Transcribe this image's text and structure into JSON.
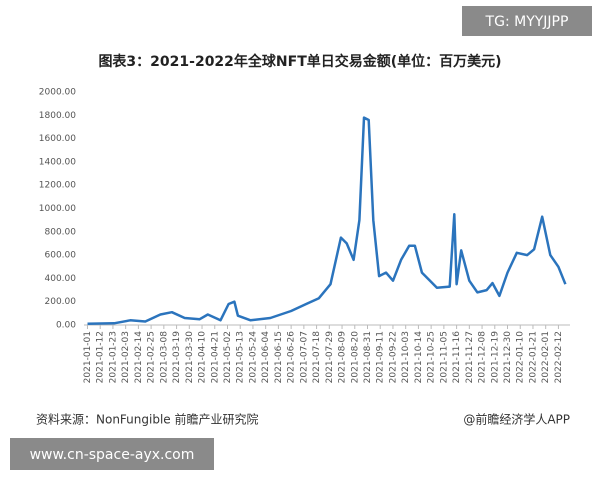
{
  "chart_data": {
    "type": "line",
    "title": "图表3：2021-2022年全球NFT单日交易金额(单位：百万美元)",
    "source": "资料来源：NonFungible 前瞻产业研究院",
    "credit": "@前瞻经济学人APP",
    "watermark_top": "TG: MYYJJPP",
    "watermark_bottom": "www.cn-space-ayx.com",
    "x": [
      "2021-01-01",
      "2021-01-24",
      "2021-02-07",
      "2021-02-20",
      "2021-03-05",
      "2021-03-15",
      "2021-03-26",
      "2021-04-08",
      "2021-04-15",
      "2021-04-26",
      "2021-05-03",
      "2021-05-08",
      "2021-05-11",
      "2021-05-22",
      "2021-06-08",
      "2021-06-26",
      "2021-07-09",
      "2021-07-20",
      "2021-07-30",
      "2021-08-08",
      "2021-08-13",
      "2021-08-19",
      "2021-08-24",
      "2021-08-28",
      "2021-09-01",
      "2021-09-05",
      "2021-09-10",
      "2021-09-16",
      "2021-09-22",
      "2021-09-29",
      "2021-10-06",
      "2021-10-11",
      "2021-10-17",
      "2021-10-24",
      "2021-10-30",
      "2021-11-10",
      "2021-11-14",
      "2021-11-16",
      "2021-11-20",
      "2021-11-27",
      "2021-12-04",
      "2021-12-12",
      "2021-12-17",
      "2021-12-23",
      "2021-12-30",
      "2022-01-07",
      "2022-01-16",
      "2022-01-22",
      "2022-01-29",
      "2022-02-05",
      "2022-02-12",
      "2022-02-18"
    ],
    "series": [
      {
        "name": "NFT单日交易金额",
        "color": "#2b74bd",
        "values": [
          10,
          15,
          40,
          30,
          90,
          110,
          60,
          50,
          90,
          40,
          180,
          200,
          80,
          40,
          60,
          120,
          180,
          230,
          350,
          750,
          700,
          560,
          900,
          1780,
          1760,
          900,
          420,
          450,
          380,
          560,
          680,
          680,
          450,
          380,
          320,
          330,
          950,
          350,
          640,
          380,
          280,
          300,
          360,
          250,
          450,
          620,
          600,
          650,
          930,
          600,
          500,
          350
        ]
      }
    ],
    "xlim": [
      "2020-12-29",
      "2022-02-22"
    ],
    "xticks": [
      "2021-01-01",
      "2021-01-12",
      "2021-01-23",
      "2021-02-03",
      "2021-02-14",
      "2021-02-25",
      "2021-03-08",
      "2021-03-19",
      "2021-03-30",
      "2021-04-10",
      "2021-04-21",
      "2021-05-02",
      "2021-05-13",
      "2021-05-24",
      "2021-06-04",
      "2021-06-15",
      "2021-06-26",
      "2021-07-07",
      "2021-07-18",
      "2021-07-29",
      "2021-08-09",
      "2021-08-20",
      "2021-08-31",
      "2021-09-11",
      "2021-09-22",
      "2021-10-03",
      "2021-10-14",
      "2021-10-25",
      "2021-11-05",
      "2021-11-16",
      "2021-11-27",
      "2021-12-08",
      "2021-12-19",
      "2021-12-30",
      "2022-01-10",
      "2022-01-21",
      "2022-02-01",
      "2022-02-12"
    ],
    "ylim": [
      0,
      2000
    ],
    "yticks": [
      {
        "value": 0,
        "label": "0.00"
      },
      {
        "value": 200,
        "label": "200.00"
      },
      {
        "value": 400,
        "label": "400.00"
      },
      {
        "value": 600,
        "label": "600.00"
      },
      {
        "value": 800,
        "label": "800.00"
      },
      {
        "value": 1000,
        "label": "1000.00"
      },
      {
        "value": 1200,
        "label": "1200.00"
      },
      {
        "value": 1400,
        "label": "1400.00"
      },
      {
        "value": 1600,
        "label": "1600.00"
      },
      {
        "value": 1800,
        "label": "1800.00"
      },
      {
        "value": 2000,
        "label": "2000.00"
      }
    ],
    "grid": false
  }
}
